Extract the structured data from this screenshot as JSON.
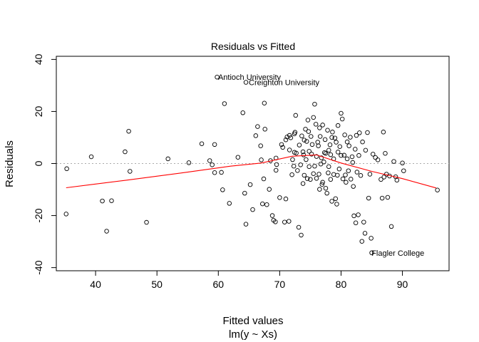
{
  "chart_data": {
    "type": "scatter",
    "title": "Residuals vs Fitted",
    "xlabel": "Fitted values",
    "subtitle": "lm(y ~ Xs)",
    "ylabel": "Residuals",
    "xlim": [
      33.6,
      97.6
    ],
    "ylim": [
      -41.2,
      41.2
    ],
    "x_ticks": [
      40,
      50,
      60,
      70,
      80,
      90
    ],
    "y_ticks": [
      -40,
      -20,
      0,
      20,
      40
    ],
    "x_tick_labels": [
      "40",
      "50",
      "60",
      "70",
      "80",
      "90"
    ],
    "y_tick_labels": [
      "-40",
      "-20",
      "0",
      "20",
      "40"
    ],
    "zero_reference_line": true,
    "colors": {
      "points": "#000000",
      "smooth": "#ff0000",
      "reference": "#aaaaaa"
    },
    "annotations": [
      {
        "text": "Antioch University",
        "x": 59.5,
        "y": 33.2
      },
      {
        "text": "Creighton University",
        "x": 64.5,
        "y": 31.2
      },
      {
        "text": "Flagler College",
        "x": 84.5,
        "y": -34.3
      }
    ],
    "smooth": {
      "x": [
        35.2,
        45,
        55,
        62,
        67,
        72,
        76,
        80,
        85,
        90,
        95.5
      ],
      "y": [
        -9.3,
        -6.4,
        -3.3,
        -1.0,
        0.2,
        2.8,
        3.3,
        0.2,
        -3.0,
        -5.8,
        -9.4
      ]
    },
    "points": {
      "x": [
        35.3,
        35.2,
        39.3,
        41.1,
        41.8,
        42.6,
        44.8,
        45.4,
        45.6,
        48.3,
        51.8,
        55.2,
        57.3,
        58.6,
        59.0,
        59.4,
        59.4,
        59.8,
        60.5,
        60.7,
        61.0,
        61.8,
        63.2,
        64.0,
        64.3,
        64.5,
        64.5,
        65.2,
        65.6,
        66.1,
        66.4,
        66.9,
        67.0,
        67.2,
        67.4,
        67.5,
        67.6,
        67.9,
        68.3,
        68.5,
        68.8,
        69.0,
        69.3,
        69.4,
        69.4,
        69.5,
        70.0,
        70.3,
        70.5,
        70.8,
        71.0,
        71.0,
        71.2,
        71.5,
        71.6,
        71.6,
        71.8,
        72.0,
        72.1,
        72.3,
        72.4,
        72.4,
        72.5,
        72.6,
        72.7,
        72.9,
        73.1,
        73.2,
        73.4,
        73.5,
        73.6,
        73.8,
        73.8,
        73.9,
        74.0,
        74.0,
        74.2,
        74.3,
        74.4,
        74.5,
        74.6,
        74.7,
        74.8,
        74.8,
        75.0,
        75.1,
        75.2,
        75.3,
        75.5,
        75.5,
        75.7,
        75.7,
        75.9,
        76.0,
        76.0,
        76.2,
        76.3,
        76.4,
        76.5,
        76.5,
        76.6,
        76.7,
        76.8,
        76.9,
        77.0,
        77.0,
        77.2,
        77.3,
        77.4,
        77.5,
        77.5,
        77.7,
        77.8,
        77.9,
        78.0,
        78.0,
        78.2,
        78.3,
        78.3,
        78.5,
        78.5,
        78.6,
        78.8,
        78.8,
        79.0,
        79.1,
        79.2,
        79.3,
        79.4,
        79.5,
        79.5,
        79.7,
        79.8,
        80.0,
        80.0,
        80.2,
        80.3,
        80.5,
        80.6,
        80.7,
        80.8,
        81.0,
        81.0,
        81.2,
        81.3,
        81.5,
        81.6,
        81.8,
        81.9,
        82.0,
        82.1,
        82.3,
        82.4,
        82.5,
        82.6,
        82.8,
        82.9,
        83.0,
        83.2,
        83.4,
        83.5,
        83.7,
        83.9,
        84.0,
        84.3,
        84.5,
        84.7,
        84.9,
        85.0,
        85.2,
        85.6,
        86.0,
        86.5,
        86.7,
        86.9,
        87.0,
        87.2,
        87.4,
        87.6,
        87.9,
        88.2,
        88.6,
        88.9,
        89.1,
        90.0,
        90.2,
        95.7
      ],
      "y": [
        -2.0,
        -19.4,
        2.6,
        -14.4,
        -26.0,
        -14.3,
        4.5,
        12.4,
        -3.0,
        -22.6,
        1.8,
        0.3,
        7.6,
        1.1,
        -0.5,
        7.3,
        -3.5,
        33.2,
        -3.4,
        -10.1,
        23.0,
        -15.3,
        2.4,
        19.5,
        -11.4,
        -23.3,
        31.2,
        -8.1,
        -17.7,
        10.7,
        14.2,
        6.8,
        1.4,
        -15.5,
        -5.9,
        23.2,
        13.2,
        -15.8,
        -9.9,
        1.1,
        -20.0,
        -21.8,
        -22.4,
        2.1,
        -2.6,
        -0.4,
        -13.1,
        7.3,
        6.2,
        -22.5,
        9.1,
        -13.6,
        10.2,
        -22.2,
        10.8,
        5.2,
        9.9,
        -4.3,
        1.5,
        -1.0,
        4.3,
        11.4,
        12.0,
        18.5,
        4.0,
        -2.7,
        -24.5,
        7.1,
        -0.5,
        -27.5,
        10.6,
        4.5,
        -7.7,
        3.3,
        9.0,
        -4.5,
        13.2,
        1.5,
        8.5,
        -5.8,
        16.7,
        12.3,
        -1.2,
        4.7,
        -6.1,
        10.4,
        3.6,
        7.3,
        -3.9,
        17.7,
        -1.0,
        22.8,
        15.1,
        -5.7,
        2.7,
        8.2,
        6.8,
        -4.1,
        13.7,
        -9.9,
        10.4,
        -0.2,
        2.2,
        -8.0,
        14.8,
        -7.2,
        0.6,
        4.2,
        9.2,
        -9.5,
        3.9,
        -11.4,
        12.8,
        -3.6,
        5.1,
        -1.2,
        7.2,
        3.4,
        -6.1,
        10.0,
        -14.5,
        12.1,
        -4.2,
        1.8,
        9.8,
        -13.5,
        8.2,
        -15.6,
        -4.5,
        4.4,
        14.6,
        -2.1,
        6.5,
        19.3,
        3.1,
        17.1,
        -5.9,
        3.2,
        11.0,
        -4.4,
        -7.2,
        8.3,
        1.8,
        -2.8,
        6.8,
        10.1,
        -6.0,
        2.6,
        0.4,
        -8.8,
        -20.1,
        5.5,
        -22.8,
        10.8,
        -3.3,
        -19.7,
        3.1,
        11.8,
        -4.6,
        -29.9,
        8.3,
        -22.5,
        -26.8,
        5.1,
        11.9,
        -13.3,
        -4.1,
        -28.7,
        -34.3,
        3.6,
        2.3,
        1.4,
        -6.1,
        -13.3,
        12.1,
        -5.2,
        3.9,
        -4.1,
        -13.0,
        -4.8,
        -24.2,
        0.8,
        -5.1,
        -6.4,
        0.2,
        -2.8,
        -10.2
      ]
    }
  }
}
